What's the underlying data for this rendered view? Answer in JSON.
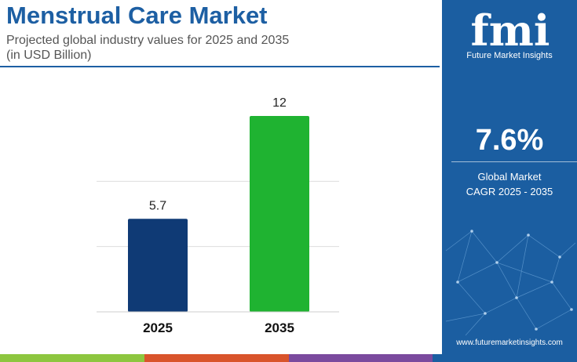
{
  "title": "Menstrual Care Market",
  "subtitle_line1": "Projected global industry values for 2025 and 2035",
  "subtitle_line2": "(in USD Billion)",
  "brand": {
    "name": "Future Market Insights",
    "logo_text": "fmi"
  },
  "cagr": {
    "value": "7.6%",
    "label_line1": "Global Market",
    "label_line2": "CAGR 2025 - 2035"
  },
  "website": "www.futuremarketinsights.com",
  "colors": {
    "title": "#1d5fa3",
    "panel": "#1b5ea1",
    "bar_2025": "#0f3a75",
    "bar_2035": "#1fb331",
    "stripe": [
      "#8dc63f",
      "#d9542b",
      "#7b4a9e",
      "#1b5ea1"
    ]
  },
  "chart_data": {
    "type": "bar",
    "categories": [
      "2025",
      "2035"
    ],
    "values": [
      5.7,
      12
    ],
    "data_labels": [
      "5.7",
      "12"
    ],
    "ylim": [
      0,
      12
    ],
    "grid": true
  }
}
